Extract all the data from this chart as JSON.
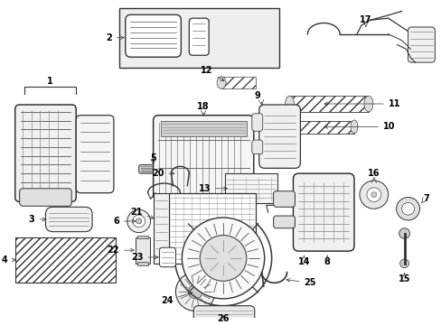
{
  "bg_color": "#ffffff",
  "line_color": "#1a1a1a",
  "label_color": "#000000",
  "fig_width": 4.89,
  "fig_height": 3.6,
  "dpi": 100,
  "font_size": 7.0
}
